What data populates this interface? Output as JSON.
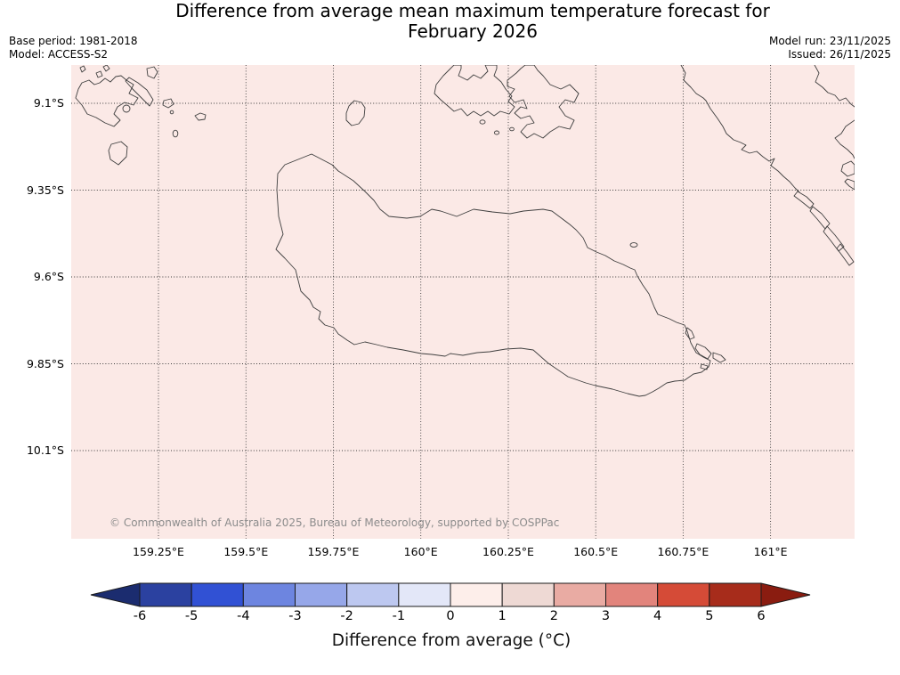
{
  "header": {
    "title_line1": "Difference from average mean maximum temperature forecast for",
    "title_line2": "February 2026",
    "base_period": "Base period: 1981-2018",
    "model": "Model: ACCESS-S2",
    "model_run": "Model run: 23/11/2025",
    "issued": "Issued: 26/11/2025"
  },
  "map": {
    "background_color": "#fbe9e6",
    "coastline_color": "#3f3f3f",
    "grid_color": "#3b3b3b",
    "lat_ticks": [
      "9.1°S",
      "9.35°S",
      "9.6°S",
      "9.85°S",
      "10.1°S"
    ],
    "lon_ticks": [
      "159.25°E",
      "159.5°E",
      "159.75°E",
      "160°E",
      "160.25°E",
      "160.5°E",
      "160.75°E",
      "161°E"
    ],
    "copyright": "© Commonwealth of Australia 2025, Bureau of Meteorology, supported by COSPPac"
  },
  "colorbar": {
    "label": "Difference from average (°C)",
    "tick_labels": [
      "-6",
      "-5",
      "-4",
      "-3",
      "-2",
      "-1",
      "0",
      "1",
      "2",
      "3",
      "4",
      "5",
      "6"
    ],
    "segment_colors": [
      "#2b41a0",
      "#3151d4",
      "#6d85e0",
      "#96a7e9",
      "#bdc8f0",
      "#e3e7f8",
      "#fdeeea",
      "#eed9d4",
      "#e9aba3",
      "#e2847c",
      "#d54b37",
      "#a72c1b"
    ],
    "under_arrow_color": "#1b2c6f",
    "over_arrow_color": "#8a1c10",
    "outline_color": "#1a1a1a"
  },
  "chart_data": {
    "type": "heatmap",
    "title": "Difference from average mean maximum temperature forecast for February 2026",
    "variable": "Difference from average mean maximum temperature",
    "units": "°C",
    "base_period": "1981-2018",
    "model": "ACCESS-S2",
    "model_run": "23/11/2025",
    "issued": "26/11/2025",
    "x_axis_ticks": [
      "159.25°E",
      "159.5°E",
      "159.75°E",
      "160°E",
      "160.25°E",
      "160.5°E",
      "160.75°E",
      "161°E"
    ],
    "y_axis_ticks": [
      "9.1°S",
      "9.35°S",
      "9.6°S",
      "9.85°S",
      "10.1°S"
    ],
    "colorbar_ticks": [
      -6,
      -5,
      -4,
      -3,
      -2,
      -1,
      0,
      1,
      2,
      3,
      4,
      5,
      6
    ],
    "colorbar_label": "Difference from average (°C)",
    "uniform_fill_bin": "0 to +1 °C across the entire visible map area",
    "grid": "dotted graticule at 0.25° intervals",
    "legend_position": "horizontal colorbar below map with under/over arrow extensions"
  }
}
